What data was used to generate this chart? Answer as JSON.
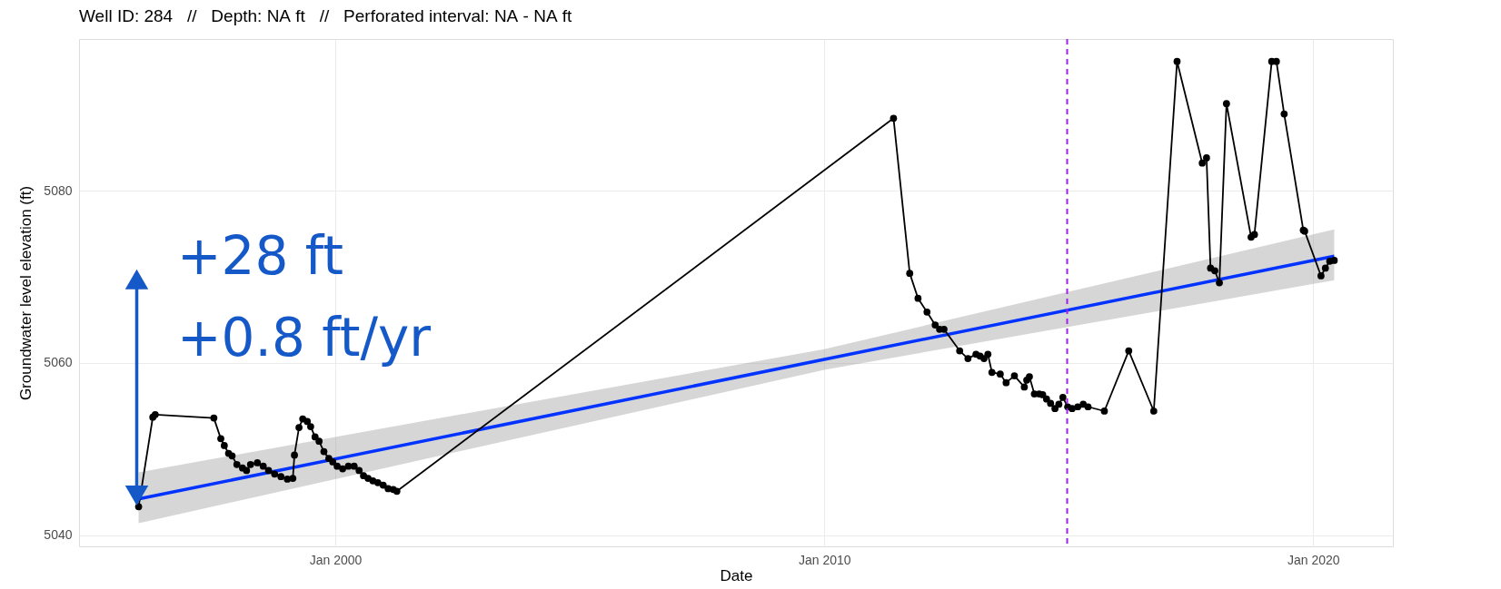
{
  "chart_data": {
    "type": "line",
    "title": "Well ID: 284   //   Depth: NA ft   //   Perforated interval: NA - NA ft",
    "xlabel": "Date",
    "ylabel": "Groundwater level elevation (ft)",
    "xlim": [
      "1994-10-05",
      "2021-08-18"
    ],
    "ylim": [
      5038.7,
      5097.6
    ],
    "xticks": [
      {
        "value": "2000-01-01",
        "label": "Jan 2000"
      },
      {
        "value": "2010-01-01",
        "label": "Jan 2010"
      },
      {
        "value": "2020-01-01",
        "label": "Jan 2020"
      }
    ],
    "yticks": [
      5040,
      5060,
      5080
    ],
    "grid": true,
    "series": [
      {
        "color": "#000000",
        "marker": "circle",
        "line_style": "solid",
        "x": [
          "1995-12-24",
          "1996-04-08",
          "1996-04-26",
          "1997-07-08",
          "1997-08-29",
          "1997-09-24",
          "1997-10-26",
          "1997-11-21",
          "1997-12-27",
          "1998-02-07",
          "1998-03-09",
          "1998-04-08",
          "1998-05-29",
          "1998-07-12",
          "1998-08-21",
          "1998-10-05",
          "1998-11-21",
          "1999-01-08",
          "1999-02-18",
          "1999-03-02",
          "1999-04-05",
          "1999-05-03",
          "1999-06-06",
          "1999-07-01",
          "1999-08-03",
          "1999-09-02",
          "1999-10-08",
          "1999-11-14",
          "1999-12-13",
          "2000-01-15",
          "2000-02-25",
          "2000-04-08",
          "2000-05-21",
          "2000-06-27",
          "2000-07-30",
          "2000-09-02",
          "2000-10-08",
          "2000-11-14",
          "2000-12-24",
          "2001-01-30",
          "2001-03-09",
          "2001-04-05",
          "2011-06-02",
          "2011-10-01",
          "2011-12-02",
          "2012-02-07",
          "2012-04-08",
          "2012-05-11",
          "2012-06-13",
          "2012-10-08",
          "2012-12-09",
          "2013-02-07",
          "2013-03-09",
          "2013-04-08",
          "2013-05-07",
          "2013-06-06",
          "2013-08-07",
          "2013-09-20",
          "2013-11-21",
          "2014-02-03",
          "2014-02-21",
          "2014-03-13",
          "2014-04-19",
          "2014-05-25",
          "2014-06-20",
          "2014-07-19",
          "2014-08-18",
          "2014-09-20",
          "2014-10-19",
          "2014-11-18",
          "2014-12-24",
          "2015-01-26",
          "2015-03-09",
          "2015-04-19",
          "2015-05-25",
          "2015-09-24",
          "2016-03-24",
          "2016-09-27",
          "2017-03-20",
          "2017-09-24",
          "2017-10-26",
          "2017-11-25",
          "2017-12-27",
          "2018-01-30",
          "2018-03-24",
          "2018-09-24",
          "2018-10-19",
          "2019-02-25",
          "2019-04-01",
          "2019-05-29",
          "2019-10-19",
          "2019-10-29",
          "2020-02-28",
          "2020-04-01",
          "2020-05-03",
          "2020-06-06"
        ],
        "values": [
          5043.3,
          5053.7,
          5054.0,
          5053.6,
          5051.2,
          5050.4,
          5049.5,
          5049.2,
          5048.2,
          5047.8,
          5047.5,
          5048.2,
          5048.4,
          5048.0,
          5047.5,
          5047.1,
          5046.8,
          5046.5,
          5046.6,
          5049.3,
          5052.5,
          5053.5,
          5053.2,
          5052.6,
          5051.4,
          5050.9,
          5049.7,
          5048.9,
          5048.5,
          5048.0,
          5047.7,
          5048.0,
          5048.0,
          5047.5,
          5046.9,
          5046.6,
          5046.3,
          5046.1,
          5045.8,
          5045.4,
          5045.3,
          5045.1,
          5088.4,
          5070.4,
          5067.5,
          5065.9,
          5064.4,
          5063.9,
          5063.9,
          5061.4,
          5060.5,
          5061.0,
          5060.8,
          5060.5,
          5061.0,
          5058.9,
          5058.7,
          5057.7,
          5058.5,
          5057.2,
          5058.0,
          5058.4,
          5056.4,
          5056.4,
          5056.3,
          5055.8,
          5055.3,
          5054.7,
          5055.2,
          5056.0,
          5054.9,
          5054.7,
          5054.9,
          5055.2,
          5054.9,
          5054.4,
          5061.4,
          5054.4,
          5095.0,
          5083.2,
          5083.8,
          5071.0,
          5070.7,
          5069.3,
          5090.1,
          5074.6,
          5074.9,
          5095.0,
          5095.0,
          5088.9,
          5075.4,
          5075.3,
          5070.1,
          5071.0,
          5071.8,
          5071.9
        ]
      },
      {
        "color": "#1559c9",
        "marker": "triangle",
        "line_style": "solid",
        "x": [
          "1995-12-10",
          "1995-12-10"
        ],
        "values": [
          5044.6,
          5069.7
        ]
      },
      {
        "color": "#0033ff",
        "marker": "none",
        "line_style": "solid",
        "x": [
          "1995-12-24",
          "2010-01-01",
          "2020-06-06"
        ],
        "values": [
          5044.2,
          5060.4,
          5072.4
        ],
        "lower": [
          5041.4,
          5059.2,
          5069.6
        ],
        "upper": [
          5047.3,
          5061.6,
          5075.5
        ]
      }
    ],
    "ref_lines": [
      {
        "axis": "x",
        "value": "2014-12-20",
        "color": "#a020f0",
        "line_style": "dashed"
      }
    ],
    "annotations": [
      "+28 ft",
      "+0.8 ft/yr"
    ]
  }
}
